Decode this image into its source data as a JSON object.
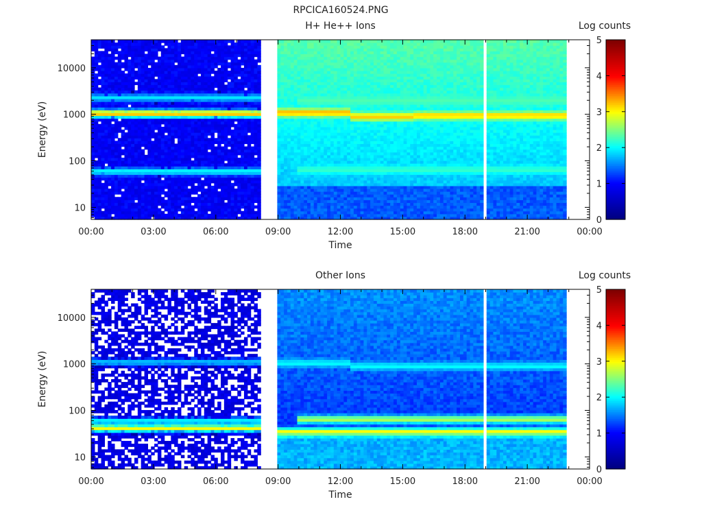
{
  "page_title": "RPCICA160524.PNG",
  "chart_data": [
    {
      "type": "heatmap",
      "title": "H+ He++ Ions",
      "xlabel": "Time",
      "ylabel": "Energy (eV)",
      "colorbar_label": "Log counts",
      "x_ticks": [
        "00:00",
        "03:00",
        "06:00",
        "09:00",
        "12:00",
        "15:00",
        "18:00",
        "21:00",
        "00:00"
      ],
      "x_range_hours": [
        0,
        24
      ],
      "y_scale": "log",
      "y_range": [
        5.5,
        40000
      ],
      "y_ticks": [
        {
          "value": 10,
          "label": "10"
        },
        {
          "value": 100,
          "label": "100"
        },
        {
          "value": 1000,
          "label": "1000"
        },
        {
          "value": 10000,
          "label": "10000"
        }
      ],
      "color_range": [
        0,
        5
      ],
      "colorbar_ticks": [
        "0",
        "1",
        "2",
        "3",
        "4",
        "5"
      ],
      "colormap": [
        "#000080",
        "#0000ff",
        "#00ffff",
        "#ffff00",
        "#ff0000",
        "#800000"
      ],
      "data_gaps_hours": [
        [
          8.15,
          9.0
        ],
        [
          18.9,
          19.0
        ],
        [
          22.8,
          24.0
        ]
      ],
      "bands": [
        {
          "t0": 0.0,
          "t1": 8.15,
          "energy": 1050,
          "level": 3.3
        },
        {
          "t0": 0.0,
          "t1": 8.15,
          "energy": 2300,
          "level": 1.9
        },
        {
          "t0": 0.0,
          "t1": 8.15,
          "energy": 60,
          "level": 2.0
        },
        {
          "t0": 9.0,
          "t1": 12.5,
          "energy": 1100,
          "level": 3.3
        },
        {
          "t0": 12.5,
          "t1": 15.5,
          "energy": 900,
          "level": 3.2
        },
        {
          "t0": 15.5,
          "t1": 22.8,
          "energy": 950,
          "level": 3.2
        },
        {
          "t0": 10.0,
          "t1": 22.8,
          "energy": 2000,
          "level": 2.3
        },
        {
          "t0": 10.0,
          "t1": 22.8,
          "energy": 65,
          "level": 2.2
        }
      ]
    },
    {
      "type": "heatmap",
      "title": "Other Ions",
      "xlabel": "Time",
      "ylabel": "Energy (eV)",
      "colorbar_label": "Log counts",
      "x_ticks": [
        "00:00",
        "03:00",
        "06:00",
        "09:00",
        "12:00",
        "15:00",
        "18:00",
        "21:00",
        "00:00"
      ],
      "x_range_hours": [
        0,
        24
      ],
      "y_scale": "log",
      "y_range": [
        5.5,
        40000
      ],
      "y_ticks": [
        {
          "value": 10,
          "label": "10"
        },
        {
          "value": 100,
          "label": "100"
        },
        {
          "value": 1000,
          "label": "1000"
        },
        {
          "value": 10000,
          "label": "10000"
        }
      ],
      "color_range": [
        0,
        5
      ],
      "colorbar_ticks": [
        "0",
        "1",
        "2",
        "3",
        "4",
        "5"
      ],
      "colormap": [
        "#000080",
        "#0000ff",
        "#00ffff",
        "#ffff00",
        "#ff0000",
        "#800000"
      ],
      "data_gaps_hours": [
        [
          8.15,
          9.0
        ],
        [
          18.9,
          19.0
        ],
        [
          22.8,
          24.0
        ]
      ],
      "bands": [
        {
          "t0": 0.0,
          "t1": 8.15,
          "energy": 1100,
          "level": 1.8
        },
        {
          "t0": 0.0,
          "t1": 8.15,
          "energy": 42,
          "level": 3.0
        },
        {
          "t0": 0.0,
          "t1": 8.15,
          "energy": 60,
          "level": 2.0
        },
        {
          "t0": 9.0,
          "t1": 12.5,
          "energy": 1050,
          "level": 2.0
        },
        {
          "t0": 12.5,
          "t1": 22.8,
          "energy": 900,
          "level": 2.0
        },
        {
          "t0": 9.0,
          "t1": 22.8,
          "energy": 35,
          "level": 3.0
        },
        {
          "t0": 10.0,
          "t1": 22.8,
          "energy": 65,
          "level": 2.7
        }
      ]
    }
  ]
}
